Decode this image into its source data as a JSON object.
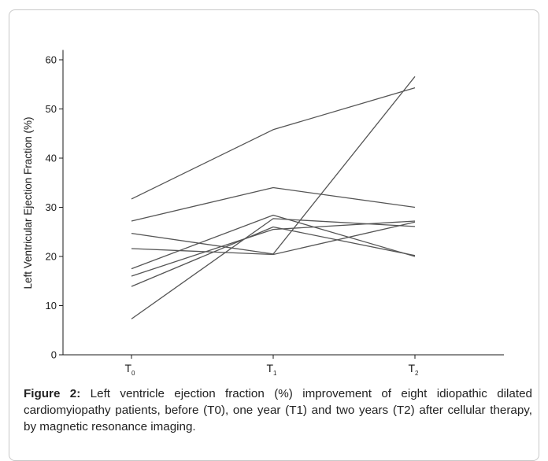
{
  "caption": {
    "label": "Figure 2:",
    "text": "Left ventricle ejection fraction (%) improvement of eight idiopathic dilated cardiomyiopathy patients, before (T0), one year (T1) and two years (T2) after cellular therapy, by magnetic resonance imaging."
  },
  "chart_data": {
    "type": "line",
    "ylabel": "Left Ventricular Ejection Fraction (%)",
    "xlabel": "",
    "categories": [
      {
        "base": "T",
        "sub": "0"
      },
      {
        "base": "T",
        "sub": "1"
      },
      {
        "base": "T",
        "sub": "2"
      }
    ],
    "ylim": [
      0,
      62
    ],
    "yticks": [
      0,
      10,
      20,
      30,
      40,
      50,
      60
    ],
    "grid": false,
    "legend": "none",
    "line_color": "#555555",
    "series": [
      {
        "values": [
          31.7,
          45.8,
          54.3
        ]
      },
      {
        "values": [
          27.2,
          34.0,
          30.0
        ]
      },
      {
        "values": [
          24.7,
          20.5,
          56.6
        ]
      },
      {
        "values": [
          21.6,
          20.4,
          27.0
        ]
      },
      {
        "values": [
          17.5,
          28.4,
          20.0
        ]
      },
      {
        "values": [
          16.0,
          25.5,
          27.2
        ]
      },
      {
        "values": [
          13.9,
          26.0,
          20.2
        ]
      },
      {
        "values": [
          7.3,
          27.7,
          26.1
        ]
      }
    ]
  }
}
